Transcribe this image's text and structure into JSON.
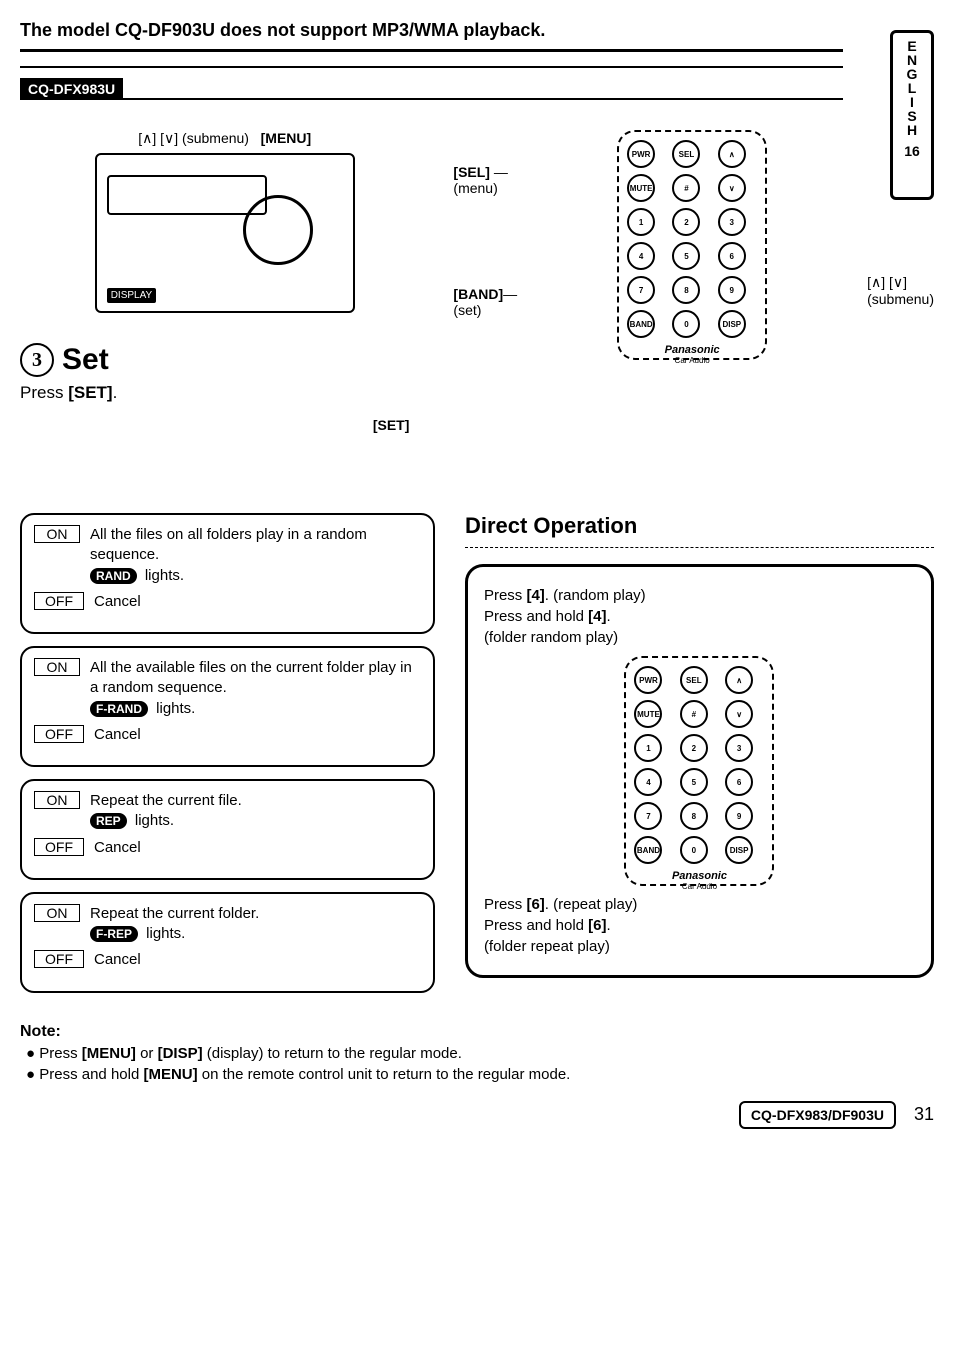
{
  "page": {
    "topnote": "The model CQ-DF903U does not support MP3/WMA playback.",
    "model_tag": "CQ-DFX983U",
    "side_tab": {
      "lang": "ENGLISH",
      "num": "16"
    },
    "device_label_left": "[∧] [∨] (submenu)",
    "device_label_menu": "[MENU]",
    "device_set_label": "[SET]",
    "step": {
      "num": "3",
      "title": "Set",
      "instruction": "Press [SET]."
    },
    "remote_labels": {
      "sel": "[SEL]",
      "sel_sub": "(menu)",
      "band": "[BAND]",
      "band_sub": "(set)",
      "arrows": "[∧] [∨]",
      "arrows_sub": "(submenu)",
      "brand": "Panasonic",
      "brand_sub": "Car Audio"
    },
    "options": [
      {
        "on": "All the files on all folders play in a random sequence.",
        "light": "RAND",
        "light_sfx": "lights.",
        "off": "Cancel"
      },
      {
        "on": "All the available files on the current folder play in a random sequence.",
        "light": "F-RAND",
        "light_sfx": "lights.",
        "off": "Cancel"
      },
      {
        "on": "Repeat the current file.",
        "light": "REP",
        "light_sfx": "lights.",
        "off": "Cancel"
      },
      {
        "on": "Repeat the current folder.",
        "light": "F-REP",
        "light_sfx": "lights.",
        "off": "Cancel"
      }
    ],
    "direct": {
      "title": "Direct Operation",
      "top1": "Press [4]. (random play)",
      "top2": "Press and hold [4].",
      "top3": "(folder random play)",
      "bot1": "Press [6]. (repeat play)",
      "bot2": "Press and hold [6].",
      "bot3": "(folder repeat play)",
      "brand": "Panasonic",
      "brand_sub": "Car Audio"
    },
    "note": {
      "heading": "Note:",
      "l1": "Press [MENU] or [DISP] (display) to return to the regular mode.",
      "l2": "Press and hold [MENU] on the remote control unit to return to the regular mode."
    },
    "footer_model": "CQ-DFX983/DF903U",
    "page_num": "31",
    "remote_buttons": [
      "PWR",
      "SEL",
      "∧",
      "MUTE",
      "#",
      "∨",
      "1",
      "2",
      "3",
      "4",
      "5",
      "6",
      "7",
      "8",
      "9",
      "BAND",
      "0",
      "DISP"
    ],
    "labels": {
      "on": "ON",
      "off": "OFF"
    }
  }
}
